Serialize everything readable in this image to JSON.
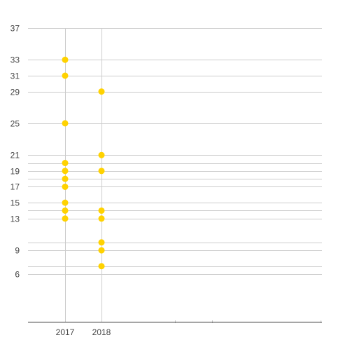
{
  "chart_data": {
    "type": "scatter",
    "title": "",
    "xlabel": "",
    "ylabel": "",
    "categories": [
      "2017",
      "2018"
    ],
    "y_ticks": [
      6,
      9,
      13,
      15,
      17,
      19,
      21,
      25,
      29,
      31,
      33,
      37
    ],
    "ylim": [
      0,
      37
    ],
    "grid": true,
    "legend": "none",
    "series": [
      {
        "color": "#FFD200",
        "points": [
          {
            "x": "2017",
            "y": 33
          },
          {
            "x": "2017",
            "y": 31
          },
          {
            "x": "2017",
            "y": 25
          },
          {
            "x": "2017",
            "y": 20
          },
          {
            "x": "2017",
            "y": 19
          },
          {
            "x": "2017",
            "y": 18
          },
          {
            "x": "2017",
            "y": 17
          },
          {
            "x": "2017",
            "y": 15
          },
          {
            "x": "2017",
            "y": 14
          },
          {
            "x": "2017",
            "y": 13
          },
          {
            "x": "2018",
            "y": 29
          },
          {
            "x": "2018",
            "y": 21
          },
          {
            "x": "2018",
            "y": 19
          },
          {
            "x": "2018",
            "y": 14
          },
          {
            "x": "2018",
            "y": 13
          },
          {
            "x": "2018",
            "y": 10
          },
          {
            "x": "2018",
            "y": 9
          },
          {
            "x": "2018",
            "y": 7
          }
        ]
      }
    ],
    "colors": {
      "point": "#FFD200",
      "grid": "#CCCCCC",
      "axis": "#333333",
      "tick_text": "#444444"
    }
  }
}
